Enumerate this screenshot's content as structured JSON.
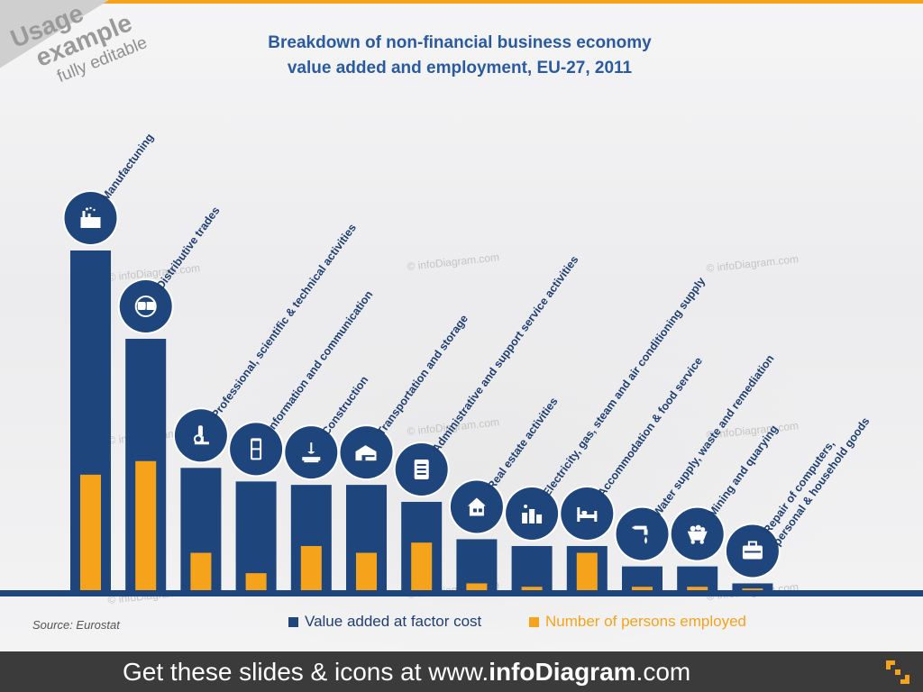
{
  "colors": {
    "value_added": "#1f467c",
    "employed": "#f5a31a",
    "baseline": "#1f467c",
    "top_bar": "#f5a31a"
  },
  "usage": {
    "line1": "Usage",
    "line2": "example",
    "line3": "fully editable"
  },
  "chart_data": {
    "type": "bar",
    "title": "Breakdown of non-financial business economy value added and employment, EU-27, 2011",
    "title_lines": [
      "Breakdown of non-financial business economy",
      "value added and employment, EU-27, 2011"
    ],
    "categories": [
      "Manufactuning",
      "Distributive trades",
      "Professional, scientific & technical activities",
      "Information and communication",
      "Construction",
      "Transportation and storage",
      "Administrative and support service activities",
      "Real estate activities",
      "Electricity, gas, steam and air conditioning supply",
      "Accommodation & food service",
      "Water supply, waste and remediation",
      "Mining and quarying",
      "Repair of computers, personal & household goods"
    ],
    "icons": [
      "factory-icon",
      "money-exchange-icon",
      "microscope-icon",
      "mobile-phone-icon",
      "crane-icon",
      "warehouse-truck-icon",
      "clipboard-icon",
      "house-icon",
      "power-plant-icon",
      "hotel-bed-icon",
      "water-tap-icon",
      "mine-cart-icon",
      "toolbox-icon"
    ],
    "series": [
      {
        "name": "Value added at factor cost",
        "values": [
          100,
          74,
          36,
          32,
          31,
          31,
          26,
          15,
          13,
          13,
          7,
          7,
          2
        ]
      },
      {
        "name": "Number of persons employed",
        "values": [
          34,
          38,
          11,
          5,
          13,
          11,
          14,
          2,
          1,
          11,
          1,
          1,
          0.5
        ]
      }
    ],
    "ylim": [
      0,
      100
    ],
    "xlabel": "",
    "ylabel": "",
    "grid": false,
    "legend_position": "bottom"
  },
  "watermark": "© infoDiagram.com",
  "source": "Source: Eurostat",
  "footer": {
    "prefix": "Get these slides & icons at www.",
    "brand": "infoDiagram",
    "suffix": ".com"
  }
}
